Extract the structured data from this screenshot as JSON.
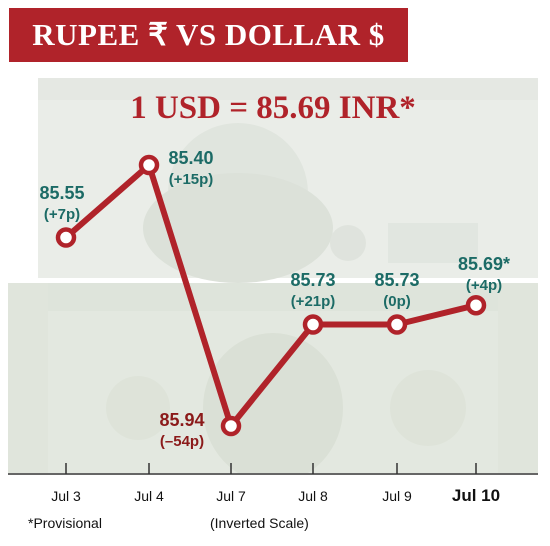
{
  "header": {
    "title": "RUPEE ₹  VS  DOLLAR $"
  },
  "headline": "1 USD = 85.69 INR*",
  "footnote": "*Provisional",
  "scale_note": "(Inverted Scale)",
  "colors": {
    "banner": "#b0232a",
    "line": "#b0232a",
    "value_text": "#1c6b66",
    "low_text": "#8b1a1a",
    "headline": "#b0232a"
  },
  "chart_data": {
    "type": "line",
    "title": "RUPEE ₹ VS DOLLAR $",
    "subtitle": "1 USD = 85.69 INR*",
    "xlabel": "",
    "ylabel": "",
    "inverted": true,
    "ylim": [
      85.3,
      86.05
    ],
    "categories": [
      "Jul 3",
      "Jul 4",
      "Jul 7",
      "Jul 8",
      "Jul 9",
      "Jul 10"
    ],
    "values": [
      85.55,
      85.4,
      85.94,
      85.73,
      85.73,
      85.69
    ],
    "value_labels": [
      "85.55",
      "85.40",
      "85.94",
      "85.73",
      "85.73",
      "85.69*"
    ],
    "change_labels": [
      "(+7p)",
      "(+15p)",
      "(–54p)",
      "(+21p)",
      "(0p)",
      "(+4p)"
    ],
    "highlight_last_tick": true
  }
}
